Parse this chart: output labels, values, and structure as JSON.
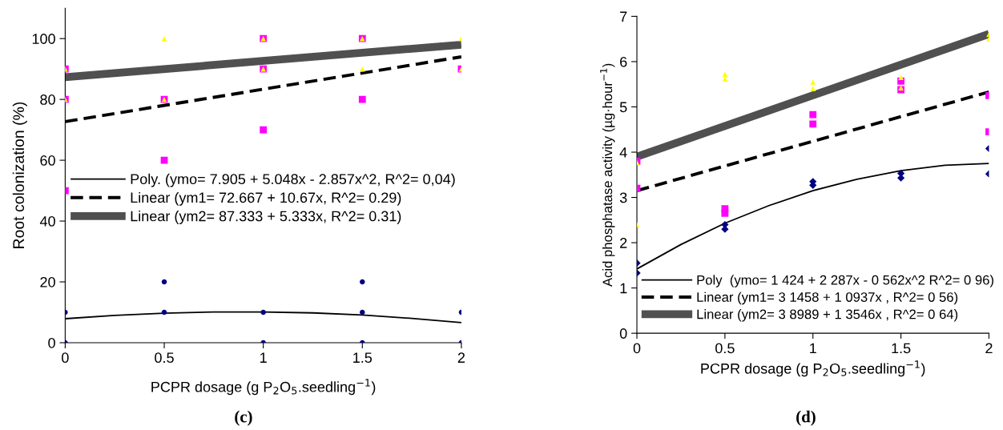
{
  "chart_data": [
    {
      "type": "scatter",
      "xlabel": "PCPR dosage (g P$_{2}$O$_{5}$.seedling$^{−1}$)",
      "ylabel": "Root colonization (%)",
      "xlim": [
        0,
        2
      ],
      "xticks": [
        0,
        0.5,
        1,
        1.5,
        2
      ],
      "ylim": [
        0,
        110
      ],
      "yticks": [
        0,
        20,
        40,
        60,
        80,
        100
      ],
      "grid": false,
      "legend": "center right",
      "annotations": [
        "(c)"
      ],
      "series": [
        {
          "color": "#000080",
          "marker": "circle",
          "x": [
            0,
            0,
            0.5,
            0.5,
            1,
            1,
            1.5,
            1.5,
            1.5,
            2,
            2
          ],
          "values": [
            0,
            10,
            10,
            20,
            0,
            10,
            0,
            10,
            20,
            0,
            10
          ]
        },
        {
          "color": "#ff00ff",
          "marker": "square",
          "x": [
            0,
            0,
            0,
            0.5,
            0.5,
            1,
            1,
            1,
            1.5,
            1.5,
            2
          ],
          "values": [
            50,
            80,
            90,
            60,
            80,
            70,
            90,
            100,
            80,
            100,
            90
          ]
        },
        {
          "color": "#ffff00",
          "marker": "triangle",
          "x": [
            0,
            0,
            0.5,
            0.5,
            1,
            1,
            1.5,
            1.5,
            2,
            2
          ],
          "values": [
            80,
            90,
            80,
            100,
            90,
            100,
            90,
            100,
            90,
            100
          ]
        },
        {
          "type": "line",
          "name": "Poly. (ymo= 7.905 + 5.048x - 2.857x^2, R^2= 0,04)",
          "color": "#000000",
          "line_style": "solid",
          "x": [
            0,
            0.25,
            0.5,
            0.75,
            1,
            1.25,
            1.5,
            1.75,
            2
          ],
          "values": [
            7.9,
            9.0,
            9.7,
            10.1,
            10.1,
            9.8,
            9.1,
            8.0,
            6.6
          ]
        },
        {
          "type": "line",
          "name": "Linear (ym1= 72.667 + 10.67x, R^2= 0.29)",
          "color": "#000000",
          "line_style": "dashed",
          "x": [
            0,
            2
          ],
          "values": [
            72.7,
            94.0
          ]
        },
        {
          "type": "line",
          "name": "Linear (ym2= 87.333 + 5.333x, R^2= 0.31)",
          "color": "#505050",
          "line_style": "solid",
          "x": [
            0,
            2
          ],
          "values": [
            87.3,
            98.0
          ]
        }
      ]
    },
    {
      "type": "scatter",
      "xlabel": "PCPR dosage (g P$_{2}$O$_{5}$.seedling$^{−1}$)",
      "ylabel": "Acid phosphatase activity (µg·hour$^{−1}$)",
      "xlim": [
        0,
        2
      ],
      "xticks": [
        0,
        0.5,
        1,
        1.5,
        2
      ],
      "ylim": [
        0,
        7
      ],
      "yticks": [
        0,
        1,
        2,
        3,
        4,
        5,
        6,
        7
      ],
      "grid": false,
      "legend": "bottom right",
      "annotations": [
        "(d)"
      ],
      "series": [
        {
          "color": "#000080",
          "marker": "diamond",
          "x": [
            0,
            0,
            0.5,
            0.5,
            1,
            1,
            1.5,
            1.5,
            2,
            2
          ],
          "values": [
            1.33,
            1.55,
            2.3,
            2.4,
            3.27,
            3.35,
            3.43,
            3.53,
            3.52,
            4.08
          ]
        },
        {
          "color": "#ff00ff",
          "marker": "square",
          "x": [
            0,
            0,
            0.5,
            0.5,
            1,
            1,
            1.5,
            1.5,
            2,
            2
          ],
          "values": [
            3.2,
            3.8,
            2.65,
            2.75,
            4.62,
            4.83,
            5.38,
            5.57,
            4.45,
            5.25
          ]
        },
        {
          "color": "#ffff00",
          "marker": "triangle",
          "x": [
            0,
            0,
            0.5,
            0.5,
            1,
            1,
            1.5,
            1.5,
            2,
            2
          ],
          "values": [
            2.4,
            3.77,
            5.62,
            5.72,
            5.4,
            5.55,
            5.42,
            5.65,
            6.5,
            6.6
          ]
        },
        {
          "type": "line",
          "name": "Poly  (ymo= 1 424 + 2 287x - 0 562x^2 R^2= 0 96)",
          "color": "#000000",
          "line_style": "solid",
          "x": [
            0,
            0.25,
            0.5,
            0.75,
            1,
            1.25,
            1.5,
            1.75,
            2
          ],
          "values": [
            1.42,
            1.96,
            2.43,
            2.82,
            3.15,
            3.4,
            3.59,
            3.71,
            3.75
          ]
        },
        {
          "type": "line",
          "name": "Linear (ym1= 3 1458 + 1 0937x , R^2= 0 56)",
          "color": "#000000",
          "line_style": "dashed",
          "x": [
            0,
            2
          ],
          "values": [
            3.15,
            5.33
          ]
        },
        {
          "type": "line",
          "name": "Linear (ym2= 3 8989 + 1 3546x , R^2= 0 64)",
          "color": "#505050",
          "line_style": "solid",
          "x": [
            0,
            2
          ],
          "values": [
            3.9,
            6.61
          ]
        }
      ]
    }
  ]
}
